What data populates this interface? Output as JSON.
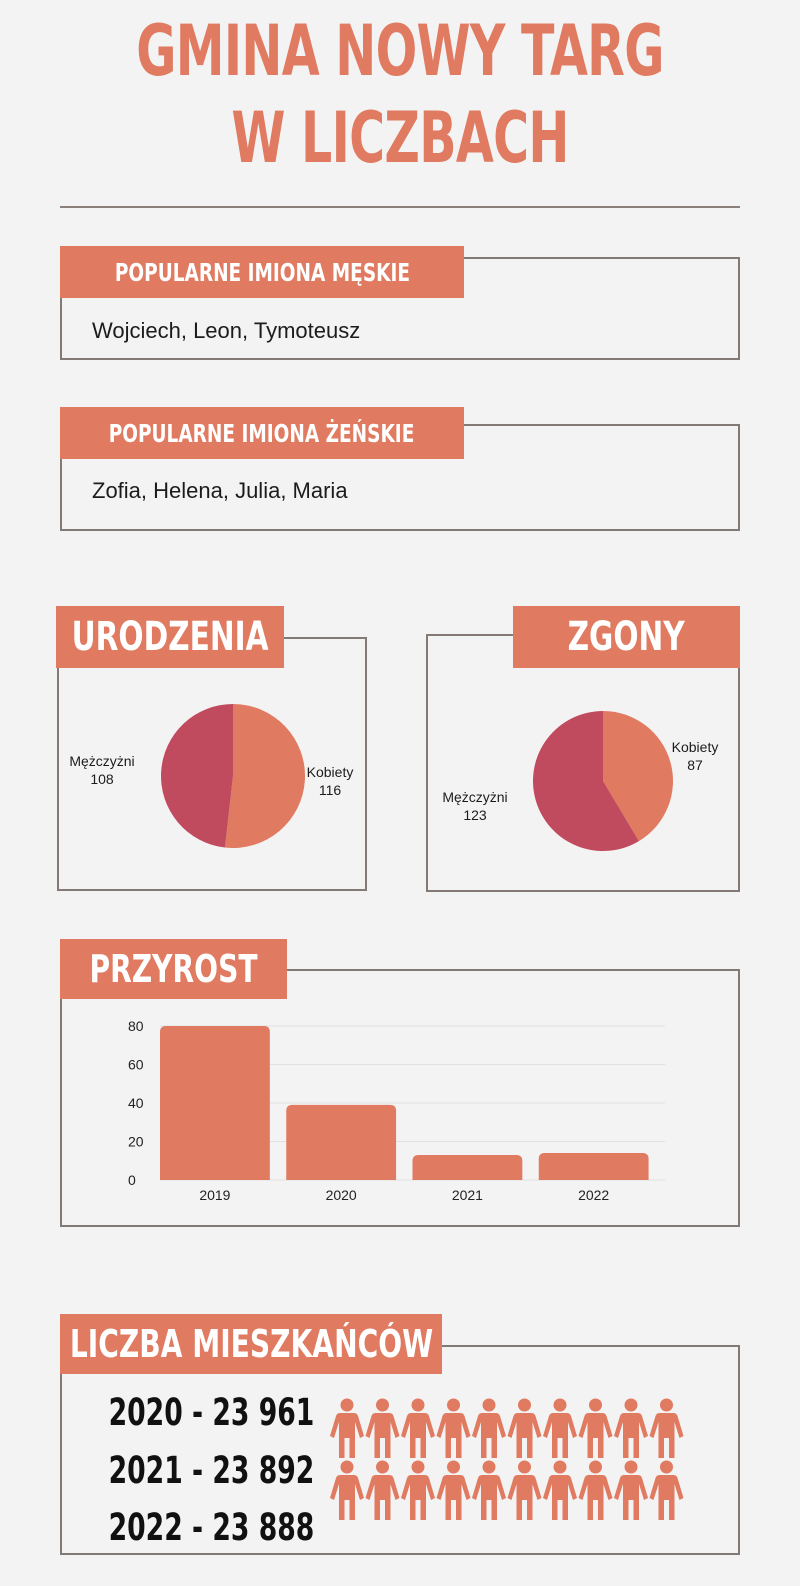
{
  "header": {
    "title_line1": "GMINA NOWY TARG",
    "title_line2": "W LICZBACH"
  },
  "male_names": {
    "heading": "POPULARNE IMIONA MĘSKIE",
    "text": "Wojciech, Leon, Tymoteusz"
  },
  "female_names": {
    "heading": "POPULARNE IMIONA ŻEŃSKIE",
    "text": "Zofia, Helena, Julia, Maria"
  },
  "births": {
    "heading": "URODZENIA"
  },
  "deaths": {
    "heading": "ZGONY"
  },
  "growth": {
    "heading": "PRZYROST"
  },
  "population": {
    "heading": "LICZBA MIESZKAŃCÓW",
    "lines": [
      "2020 - 23 961",
      "2021 - 23 892",
      "2022 - 23 888"
    ],
    "icon": "person-icon"
  },
  "colors": {
    "accent": "#e07a60",
    "secondary": "#c04b5e",
    "border": "#837a75"
  },
  "chart_data": [
    {
      "type": "pie",
      "title": "URODZENIA",
      "slices": [
        {
          "label": "Kobiety",
          "value": 116,
          "color": "#e07a60"
        },
        {
          "label": "Mężczyżni",
          "value": 108,
          "color": "#c04b5e"
        }
      ]
    },
    {
      "type": "pie",
      "title": "ZGONY",
      "slices": [
        {
          "label": "Kobiety",
          "value": 87,
          "color": "#e07a60"
        },
        {
          "label": "Mężczyżni",
          "value": 123,
          "color": "#c04b5e"
        }
      ]
    },
    {
      "type": "bar",
      "title": "PRZYROST",
      "categories": [
        "2019",
        "2020",
        "2021",
        "2022"
      ],
      "values": [
        80,
        39,
        13,
        14
      ],
      "ylim": [
        0,
        80
      ],
      "yticks": [
        "0",
        "20",
        "40",
        "60",
        "80"
      ],
      "grid": true,
      "color": "#e07a60"
    }
  ]
}
